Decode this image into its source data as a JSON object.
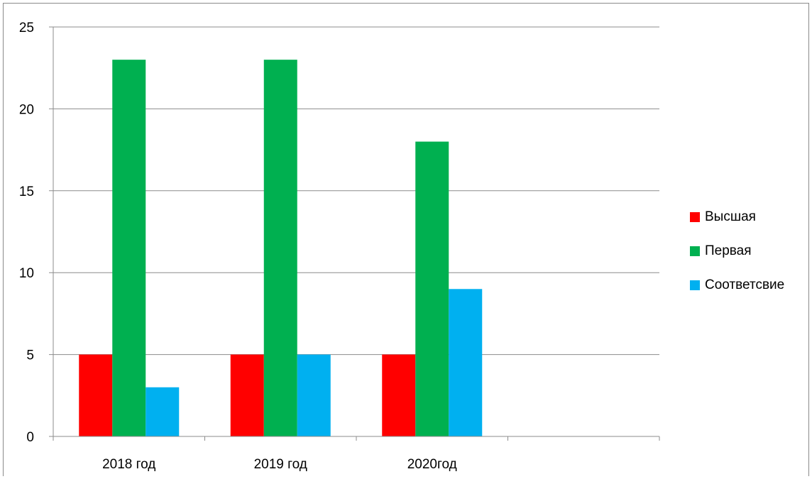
{
  "chart_data": {
    "type": "bar",
    "categories": [
      "2018 год",
      "2019 год",
      "2020год",
      ""
    ],
    "series": [
      {
        "name": "Высшая",
        "values": [
          5,
          5,
          5,
          null
        ],
        "color": "#FF0000"
      },
      {
        "name": "Первая",
        "values": [
          23,
          23,
          18,
          null
        ],
        "color": "#00B050"
      },
      {
        "name": "Соответсвие",
        "values": [
          3,
          5,
          9,
          null
        ],
        "color": "#00B0F0"
      }
    ],
    "ylim": [
      0,
      25
    ],
    "yticks": [
      "0",
      "5",
      "10",
      "15",
      "20",
      "25"
    ],
    "grid": true,
    "legend_position": "right"
  }
}
